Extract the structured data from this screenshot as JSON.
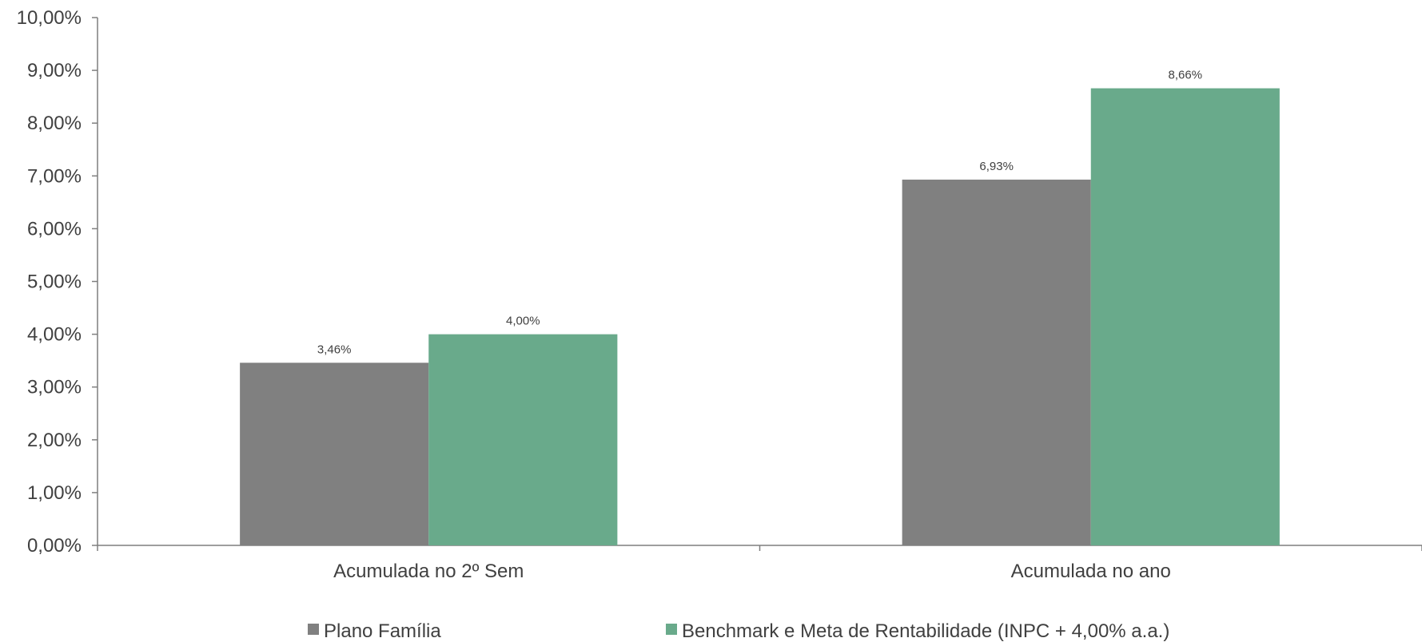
{
  "chart_data": {
    "type": "bar",
    "categories": [
      "Acumulada no 2º Sem",
      "Acumulada no ano"
    ],
    "series": [
      {
        "name": "Plano Família",
        "values": [
          3.46,
          6.93
        ],
        "labels": [
          "3,46%",
          "6,93%"
        ],
        "color": "#808080"
      },
      {
        "name": "Benchmark e Meta de Rentabilidade (INPC + 4,00% a.a.)",
        "values": [
          4.0,
          8.66
        ],
        "labels": [
          "4,00%",
          "8,66%"
        ],
        "color": "#69AA8B"
      }
    ],
    "ylim": [
      0,
      10
    ],
    "yticks": [
      0,
      1,
      2,
      3,
      4,
      5,
      6,
      7,
      8,
      9,
      10
    ],
    "ytick_labels": [
      "0,00%",
      "1,00%",
      "2,00%",
      "3,00%",
      "4,00%",
      "5,00%",
      "6,00%",
      "7,00%",
      "8,00%",
      "9,00%",
      "10,00%"
    ],
    "grid": false,
    "legend_position": "bottom",
    "axis_color": "#7f7f7f"
  }
}
